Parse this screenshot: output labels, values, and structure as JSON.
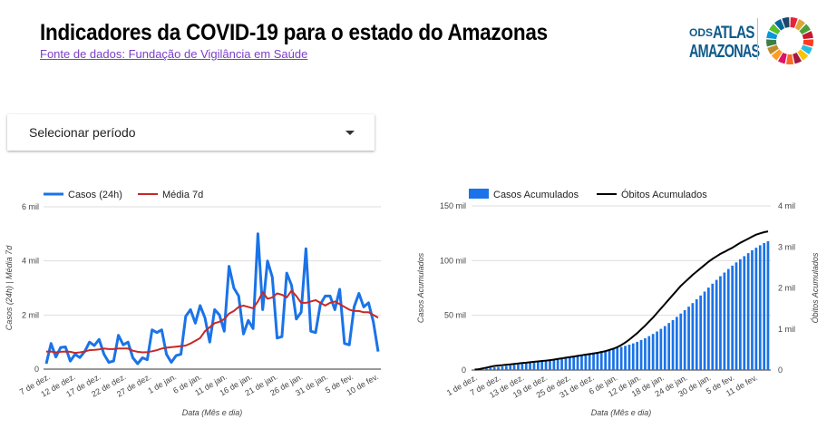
{
  "page": {
    "title": "Indicadores da COVID-19 para o estado do Amazonas",
    "source_link": "Fonte de dados: Fundação de Vigilância em Saúde"
  },
  "logo": {
    "ods": "ODS",
    "atlas": "ATLAS",
    "amazonas": "AMAZONAS",
    "colors": [
      "#e5243b",
      "#dda63a",
      "#4c9f38",
      "#c5192d",
      "#ff3a21",
      "#26bde2",
      "#fcc30b",
      "#a21942",
      "#fd6925",
      "#dd1367",
      "#fd9d24",
      "#bf8b2e",
      "#3f7e44",
      "#0a97d9",
      "#56c02b",
      "#00689d",
      "#19486a"
    ]
  },
  "period_selector": {
    "label": "Selecionar período",
    "icon": "dropdown-arrow-icon"
  },
  "chart_data": [
    {
      "type": "line",
      "xlabel": "Data (Mês e dia)",
      "ylabel": "Casos (24h) | Média 7d",
      "ylim": [
        0,
        6000
      ],
      "y_ticks": [
        0,
        2000,
        4000,
        6000
      ],
      "y_tick_labels": [
        "0",
        "2 mil",
        "4 mil",
        "6 mil"
      ],
      "x_tick_labels": [
        "7 de dez.",
        "12 de dez.",
        "17 de dez.",
        "22 de dez.",
        "27 de dez.",
        "1 de jan.",
        "6 de jan.",
        "11 de jan.",
        "16 de jan.",
        "21 de jan.",
        "26 de jan.",
        "31 de jan.",
        "5 de fev.",
        "10 de fev."
      ],
      "legend_position": "top-left",
      "grid": true,
      "series": [
        {
          "name": "Casos (24h)",
          "color": "#1a73e8",
          "values": [
            200,
            950,
            450,
            800,
            820,
            300,
            550,
            430,
            650,
            1000,
            870,
            1100,
            550,
            250,
            300,
            1250,
            900,
            1000,
            420,
            200,
            420,
            350,
            1450,
            1350,
            1450,
            550,
            250,
            500,
            550,
            1950,
            2200,
            1700,
            2350,
            1900,
            1000,
            2200,
            2000,
            1400,
            3800,
            3000,
            2700,
            1300,
            1800,
            1500,
            5000,
            2200,
            4000,
            3400,
            1150,
            1200,
            3550,
            3100,
            1850,
            2100,
            4450,
            1400,
            1350,
            2400,
            2700,
            2700,
            2200,
            2950,
            950,
            900,
            2300,
            2800,
            2300,
            2450,
            1750,
            650
          ]
        },
        {
          "name": "Média 7d",
          "color": "#c62828",
          "values": [
            650,
            650,
            620,
            640,
            650,
            640,
            600,
            620,
            650,
            700,
            710,
            730,
            760,
            740,
            740,
            760,
            760,
            760,
            680,
            640,
            620,
            630,
            660,
            700,
            760,
            790,
            810,
            830,
            850,
            870,
            950,
            1050,
            1150,
            1400,
            1550,
            1700,
            1750,
            1850,
            2050,
            2150,
            2300,
            2350,
            2300,
            2250,
            2500,
            2850,
            2600,
            2650,
            2800,
            2750,
            2650,
            2900,
            2700,
            2450,
            2450,
            2500,
            2550,
            2450,
            2350,
            2450,
            2500,
            2400,
            2300,
            2200,
            2150,
            2150,
            2100,
            2100,
            2000,
            1900
          ]
        }
      ]
    },
    {
      "type": "bar+line",
      "xlabel": "Data (Mês e dia)",
      "ylabel_left": "Casos Acumulados",
      "ylabel_right": "Óbitos Acumulados",
      "ylim_left": [
        0,
        150000
      ],
      "ylim_right": [
        0,
        4000
      ],
      "y_ticks_left": [
        0,
        50000,
        100000,
        150000
      ],
      "y_tick_labels_left": [
        "0",
        "50 mil",
        "100 mil",
        "150 mil"
      ],
      "y_ticks_right": [
        0,
        1000,
        2000,
        3000,
        4000
      ],
      "y_tick_labels_right": [
        "0",
        "1 mil",
        "2 mil",
        "3 mil",
        "4 mil"
      ],
      "x_tick_labels": [
        "1 de dez.",
        "7 de dez.",
        "13 de dez.",
        "19 de dez.",
        "25 de dez.",
        "31 de dez.",
        "6 de jan.",
        "12 de jan.",
        "18 de jan.",
        "24 de jan.",
        "30 de jan.",
        "5 de fev.",
        "11 de fev."
      ],
      "legend_position": "top-left",
      "grid": true,
      "series": [
        {
          "name": "Casos Acumulados",
          "type": "bar",
          "axis": "left",
          "color": "#1a73e8",
          "values": [
            400,
            800,
            1200,
            1600,
            2000,
            2400,
            2800,
            3200,
            3700,
            4200,
            4700,
            5200,
            5700,
            6200,
            6700,
            7200,
            7700,
            8200,
            8800,
            9400,
            10000,
            10600,
            11200,
            11800,
            12400,
            13000,
            13600,
            14200,
            14800,
            15400,
            16000,
            16600,
            17300,
            18000,
            18700,
            19400,
            20200,
            21100,
            22100,
            23200,
            24400,
            25800,
            27400,
            29100,
            31000,
            33000,
            35200,
            37600,
            40200,
            42900,
            45700,
            48600,
            51600,
            54700,
            57900,
            61200,
            64600,
            68100,
            71700,
            75300,
            78900,
            82400,
            85800,
            89100,
            92300,
            95400,
            98400,
            101300,
            104100,
            106800,
            109400,
            111800,
            114000,
            116000,
            117800
          ]
        },
        {
          "name": "Óbitos Acumulados",
          "type": "line",
          "axis": "right",
          "color": "#000000",
          "values": [
            10,
            20,
            40,
            60,
            80,
            100,
            110,
            120,
            130,
            140,
            150,
            160,
            170,
            180,
            190,
            200,
            210,
            220,
            230,
            240,
            255,
            270,
            285,
            300,
            315,
            330,
            345,
            360,
            375,
            390,
            405,
            420,
            440,
            460,
            490,
            520,
            560,
            610,
            670,
            740,
            820,
            900,
            990,
            1080,
            1180,
            1280,
            1390,
            1500,
            1610,
            1720,
            1830,
            1940,
            2050,
            2140,
            2230,
            2320,
            2400,
            2480,
            2560,
            2640,
            2710,
            2770,
            2830,
            2880,
            2930,
            2980,
            3040,
            3100,
            3150,
            3200,
            3250,
            3300,
            3330,
            3360,
            3380
          ]
        }
      ]
    }
  ]
}
